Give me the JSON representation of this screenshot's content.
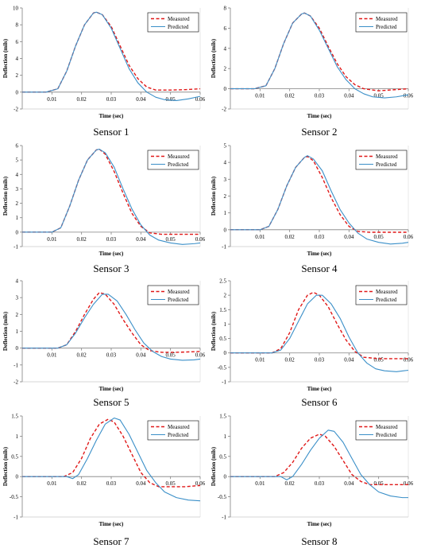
{
  "colors": {
    "measured": "#e01818",
    "predicted": "#3a8fc8",
    "axis": "#808080",
    "text": "#000000"
  },
  "chart_data": [
    {
      "type": "line",
      "caption": "Sensor 1",
      "xlabel": "Time (sec)",
      "ylabel": "Deflection (mils)",
      "xlim": [
        0,
        0.06
      ],
      "ylim": [
        -2,
        10
      ],
      "xticks": [
        "0.01",
        "0.02",
        "0.03",
        "0.04",
        "0.05",
        "0.06"
      ],
      "xtick_values": [
        0.01,
        0.02,
        0.03,
        0.04,
        0.05,
        0.06
      ],
      "yticks": [
        "-2",
        "0",
        "2",
        "4",
        "6",
        "8",
        "10"
      ],
      "ytick_values": [
        -2,
        0,
        2,
        4,
        6,
        8,
        10
      ],
      "legend": "top-right",
      "series": [
        {
          "name": "Measured",
          "style": "dashed",
          "x": [
            0,
            0.008,
            0.012,
            0.015,
            0.018,
            0.021,
            0.024,
            0.025,
            0.027,
            0.03,
            0.033,
            0.036,
            0.039,
            0.042,
            0.045,
            0.05,
            0.055,
            0.06
          ],
          "y": [
            0,
            0,
            0.4,
            2.5,
            5.5,
            8,
            9.4,
            9.5,
            9.2,
            7.8,
            5.5,
            3.2,
            1.6,
            0.6,
            0.25,
            0.25,
            0.3,
            0.4
          ]
        },
        {
          "name": "Predicted",
          "style": "solid",
          "x": [
            0,
            0.008,
            0.012,
            0.015,
            0.018,
            0.021,
            0.024,
            0.025,
            0.027,
            0.03,
            0.033,
            0.036,
            0.039,
            0.042,
            0.045,
            0.048,
            0.052,
            0.056,
            0.06
          ],
          "y": [
            0,
            0,
            0.4,
            2.5,
            5.5,
            8,
            9.4,
            9.5,
            9.2,
            7.6,
            5.2,
            2.8,
            1.1,
            0,
            -0.6,
            -0.9,
            -1,
            -0.8,
            -0.5
          ]
        }
      ]
    },
    {
      "type": "line",
      "caption": "Sensor 2",
      "xlabel": "Time (sec)",
      "ylabel": "Deflection (mils)",
      "xlim": [
        0,
        0.06
      ],
      "ylim": [
        -2,
        8
      ],
      "xticks": [
        "0.01",
        "0.02",
        "0.03",
        "0.04",
        "0.05",
        "0.06"
      ],
      "xtick_values": [
        0.01,
        0.02,
        0.03,
        0.04,
        0.05,
        0.06
      ],
      "yticks": [
        "-2",
        "0",
        "2",
        "4",
        "6",
        "8"
      ],
      "ytick_values": [
        -2,
        0,
        2,
        4,
        6,
        8
      ],
      "legend": "top-right",
      "series": [
        {
          "name": "Measured",
          "style": "dashed",
          "x": [
            0,
            0.008,
            0.012,
            0.015,
            0.018,
            0.021,
            0.024,
            0.025,
            0.027,
            0.03,
            0.033,
            0.036,
            0.039,
            0.042,
            0.045,
            0.05,
            0.055,
            0.06
          ],
          "y": [
            0,
            0,
            0.3,
            2,
            4.5,
            6.5,
            7.4,
            7.5,
            7.2,
            6,
            4.2,
            2.5,
            1.2,
            0.4,
            0,
            -0.2,
            -0.1,
            0
          ]
        },
        {
          "name": "Predicted",
          "style": "solid",
          "x": [
            0,
            0.008,
            0.012,
            0.015,
            0.018,
            0.021,
            0.024,
            0.025,
            0.027,
            0.03,
            0.033,
            0.036,
            0.039,
            0.042,
            0.045,
            0.048,
            0.052,
            0.056,
            0.06
          ],
          "y": [
            0,
            0,
            0.3,
            2,
            4.5,
            6.5,
            7.4,
            7.5,
            7.2,
            5.8,
            4,
            2.2,
            0.9,
            0,
            -0.5,
            -0.8,
            -0.9,
            -0.8,
            -0.6
          ]
        }
      ]
    },
    {
      "type": "line",
      "caption": "Sensor 3",
      "xlabel": "Time (sec)",
      "ylabel": "Deflection (mils)",
      "xlim": [
        0,
        0.06
      ],
      "ylim": [
        -1,
        6
      ],
      "xticks": [
        "0.01",
        "0.02",
        "0.03",
        "0.04",
        "0.05",
        "0.06"
      ],
      "xtick_values": [
        0.01,
        0.02,
        0.03,
        0.04,
        0.05,
        0.06
      ],
      "yticks": [
        "-1",
        "0",
        "1",
        "2",
        "3",
        "4",
        "5",
        "6"
      ],
      "ytick_values": [
        -1,
        0,
        1,
        2,
        3,
        4,
        5,
        6
      ],
      "legend": "top-right",
      "series": [
        {
          "name": "Measured",
          "style": "dashed",
          "x": [
            0,
            0.01,
            0.013,
            0.016,
            0.019,
            0.022,
            0.025,
            0.026,
            0.028,
            0.031,
            0.034,
            0.037,
            0.04,
            0.043,
            0.047,
            0.052,
            0.06
          ],
          "y": [
            0,
            0,
            0.3,
            1.8,
            3.6,
            5,
            5.7,
            5.75,
            5.4,
            4.2,
            2.7,
            1.3,
            0.4,
            -0.05,
            -0.15,
            -0.15,
            -0.15
          ]
        },
        {
          "name": "Predicted",
          "style": "solid",
          "x": [
            0,
            0.01,
            0.013,
            0.016,
            0.019,
            0.022,
            0.025,
            0.026,
            0.028,
            0.031,
            0.034,
            0.037,
            0.04,
            0.043,
            0.046,
            0.05,
            0.054,
            0.058,
            0.06
          ],
          "y": [
            0,
            0,
            0.3,
            1.8,
            3.6,
            5,
            5.7,
            5.75,
            5.5,
            4.5,
            3,
            1.6,
            0.5,
            -0.2,
            -0.55,
            -0.75,
            -0.85,
            -0.8,
            -0.75
          ]
        }
      ]
    },
    {
      "type": "line",
      "caption": "Sensor 4",
      "xlabel": "Time (sec)",
      "ylabel": "Deflection (mils)",
      "xlim": [
        0,
        0.06
      ],
      "ylim": [
        -1,
        5
      ],
      "xticks": [
        "0.01",
        "0.02",
        "0.03",
        "0.04",
        "0.05",
        "0.06"
      ],
      "xtick_values": [
        0.01,
        0.02,
        0.03,
        0.04,
        0.05,
        0.06
      ],
      "yticks": [
        "-1",
        "0",
        "1",
        "2",
        "3",
        "4",
        "5"
      ],
      "ytick_values": [
        -1,
        0,
        1,
        2,
        3,
        4,
        5
      ],
      "legend": "top-right",
      "series": [
        {
          "name": "Measured",
          "style": "dashed",
          "x": [
            0,
            0.01,
            0.013,
            0.016,
            0.019,
            0.022,
            0.025,
            0.026,
            0.028,
            0.031,
            0.034,
            0.037,
            0.04,
            0.043,
            0.047,
            0.052,
            0.06
          ],
          "y": [
            0,
            0,
            0.2,
            1.2,
            2.6,
            3.7,
            4.3,
            4.35,
            4.1,
            3.1,
            1.9,
            0.9,
            0.2,
            -0.1,
            -0.15,
            -0.15,
            -0.15
          ]
        },
        {
          "name": "Predicted",
          "style": "solid",
          "x": [
            0,
            0.01,
            0.013,
            0.016,
            0.019,
            0.022,
            0.025,
            0.026,
            0.028,
            0.031,
            0.034,
            0.037,
            0.04,
            0.043,
            0.046,
            0.05,
            0.054,
            0.058,
            0.06
          ],
          "y": [
            0,
            0,
            0.2,
            1.2,
            2.6,
            3.7,
            4.3,
            4.4,
            4.2,
            3.5,
            2.3,
            1.2,
            0.4,
            -0.2,
            -0.55,
            -0.75,
            -0.85,
            -0.8,
            -0.75
          ]
        }
      ]
    },
    {
      "type": "line",
      "caption": "Sensor 5",
      "xlabel": "Time (sec)",
      "ylabel": "Deflection (mils)",
      "xlim": [
        0,
        0.06
      ],
      "ylim": [
        -2,
        4
      ],
      "xticks": [
        "0.01",
        "0.02",
        "0.03",
        "0.04",
        "0.05",
        "0.06"
      ],
      "xtick_values": [
        0.01,
        0.02,
        0.03,
        0.04,
        0.05,
        0.06
      ],
      "yticks": [
        "-2",
        "-1",
        "0",
        "1",
        "2",
        "3",
        "4"
      ],
      "ytick_values": [
        -2,
        -1,
        0,
        1,
        2,
        3,
        4
      ],
      "legend": "top-right",
      "series": [
        {
          "name": "Measured",
          "style": "dashed",
          "x": [
            0,
            0.012,
            0.015,
            0.018,
            0.021,
            0.024,
            0.026,
            0.028,
            0.031,
            0.034,
            0.037,
            0.04,
            0.043,
            0.047,
            0.052,
            0.06
          ],
          "y": [
            0,
            0,
            0.2,
            1,
            2,
            2.9,
            3.3,
            3.2,
            2.6,
            1.7,
            0.9,
            0.2,
            -0.15,
            -0.25,
            -0.25,
            -0.2
          ]
        },
        {
          "name": "Predicted",
          "style": "solid",
          "x": [
            0,
            0.012,
            0.015,
            0.018,
            0.021,
            0.024,
            0.027,
            0.029,
            0.032,
            0.035,
            0.038,
            0.041,
            0.044,
            0.047,
            0.05,
            0.054,
            0.058,
            0.06
          ],
          "y": [
            0,
            0,
            0.2,
            0.9,
            1.8,
            2.6,
            3.2,
            3.2,
            2.8,
            2,
            1.1,
            0.3,
            -0.2,
            -0.5,
            -0.65,
            -0.72,
            -0.7,
            -0.65
          ]
        }
      ]
    },
    {
      "type": "line",
      "caption": "Sensor 6",
      "xlabel": "Time (sec)",
      "ylabel": "Deflection (mils)",
      "xlim": [
        0,
        0.06
      ],
      "ylim": [
        -1,
        2.5
      ],
      "xticks": [
        "0.01",
        "0.02",
        "0.03",
        "0.04",
        "0.05",
        "0.06"
      ],
      "xtick_values": [
        0.01,
        0.02,
        0.03,
        0.04,
        0.05,
        0.06
      ],
      "yticks": [
        "-1",
        "-0.5",
        "0",
        "0.5",
        "1",
        "1.5",
        "2",
        "2.5"
      ],
      "ytick_values": [
        -1,
        -0.5,
        0,
        0.5,
        1,
        1.5,
        2,
        2.5
      ],
      "legend": "top-right",
      "series": [
        {
          "name": "Measured",
          "style": "dashed",
          "x": [
            0,
            0.014,
            0.017,
            0.02,
            0.023,
            0.026,
            0.028,
            0.03,
            0.033,
            0.036,
            0.039,
            0.042,
            0.045,
            0.05,
            0.06
          ],
          "y": [
            0,
            0,
            0.15,
            0.7,
            1.5,
            2,
            2.1,
            2,
            1.6,
            1,
            0.45,
            0.05,
            -0.15,
            -0.2,
            -0.2
          ]
        },
        {
          "name": "Predicted",
          "style": "solid",
          "x": [
            0,
            0.014,
            0.017,
            0.02,
            0.023,
            0.026,
            0.029,
            0.031,
            0.034,
            0.037,
            0.04,
            0.043,
            0.046,
            0.049,
            0.052,
            0.056,
            0.06
          ],
          "y": [
            0,
            0,
            0.1,
            0.5,
            1.1,
            1.7,
            2,
            2,
            1.7,
            1.2,
            0.55,
            0,
            -0.35,
            -0.55,
            -0.62,
            -0.65,
            -0.6
          ]
        }
      ]
    },
    {
      "type": "line",
      "caption": "Sensor 7",
      "xlabel": "Time (sec)",
      "ylabel": "Deflection (mils)",
      "xlim": [
        0,
        0.06
      ],
      "ylim": [
        -1,
        1.5
      ],
      "xticks": [
        "0.01",
        "0.02",
        "0.03",
        "0.04",
        "0.05",
        "0.06"
      ],
      "xtick_values": [
        0.01,
        0.02,
        0.03,
        0.04,
        0.05,
        0.06
      ],
      "yticks": [
        "-1",
        "-0.5",
        "0",
        "0.5",
        "1",
        "1.5"
      ],
      "ytick_values": [
        -1,
        -0.5,
        0,
        0.5,
        1,
        1.5
      ],
      "legend": "top-right",
      "series": [
        {
          "name": "Measured",
          "style": "dashed",
          "x": [
            0,
            0.014,
            0.017,
            0.02,
            0.023,
            0.026,
            0.029,
            0.031,
            0.034,
            0.037,
            0.04,
            0.043,
            0.046,
            0.05,
            0.055,
            0.06
          ],
          "y": [
            0,
            0,
            0.1,
            0.45,
            0.95,
            1.3,
            1.42,
            1.35,
            1,
            0.55,
            0.1,
            -0.15,
            -0.25,
            -0.25,
            -0.25,
            -0.22
          ]
        },
        {
          "name": "Predicted",
          "style": "solid",
          "x": [
            0,
            0.015,
            0.017,
            0.019,
            0.022,
            0.025,
            0.028,
            0.031,
            0.033,
            0.036,
            0.039,
            0.042,
            0.045,
            0.048,
            0.052,
            0.056,
            0.06
          ],
          "y": [
            0,
            0,
            -0.05,
            0.05,
            0.45,
            0.9,
            1.3,
            1.45,
            1.4,
            1.05,
            0.6,
            0.15,
            -0.15,
            -0.38,
            -0.52,
            -0.58,
            -0.6
          ]
        }
      ]
    },
    {
      "type": "line",
      "caption": "Sensor 8",
      "xlabel": "Time (sec)",
      "ylabel": "Deflection (mils)",
      "xlim": [
        0,
        0.06
      ],
      "ylim": [
        -1,
        1.5
      ],
      "xticks": [
        "0.01",
        "0.02",
        "0.03",
        "0.04",
        "0.05",
        "0.06"
      ],
      "xtick_values": [
        0.01,
        0.02,
        0.03,
        0.04,
        0.05,
        0.06
      ],
      "yticks": [
        "-1",
        "-0.5",
        "0",
        "0.5",
        "1",
        "1.5"
      ],
      "ytick_values": [
        -1,
        -0.5,
        0,
        0.5,
        1,
        1.5
      ],
      "legend": "top-right",
      "series": [
        {
          "name": "Measured",
          "style": "dashed",
          "x": [
            0,
            0.015,
            0.018,
            0.021,
            0.024,
            0.027,
            0.03,
            0.032,
            0.035,
            0.038,
            0.041,
            0.044,
            0.047,
            0.05,
            0.055,
            0.06
          ],
          "y": [
            0,
            0,
            0.1,
            0.35,
            0.7,
            0.95,
            1.05,
            1,
            0.75,
            0.4,
            0.05,
            -0.12,
            -0.2,
            -0.2,
            -0.2,
            -0.2
          ]
        },
        {
          "name": "Predicted",
          "style": "solid",
          "x": [
            0,
            0.017,
            0.019,
            0.021,
            0.024,
            0.027,
            0.03,
            0.033,
            0.035,
            0.038,
            0.041,
            0.044,
            0.047,
            0.05,
            0.054,
            0.058,
            0.06
          ],
          "y": [
            0,
            0,
            -0.08,
            0,
            0.3,
            0.65,
            0.95,
            1.15,
            1.12,
            0.85,
            0.45,
            0.05,
            -0.2,
            -0.38,
            -0.48,
            -0.52,
            -0.52
          ]
        }
      ]
    }
  ]
}
